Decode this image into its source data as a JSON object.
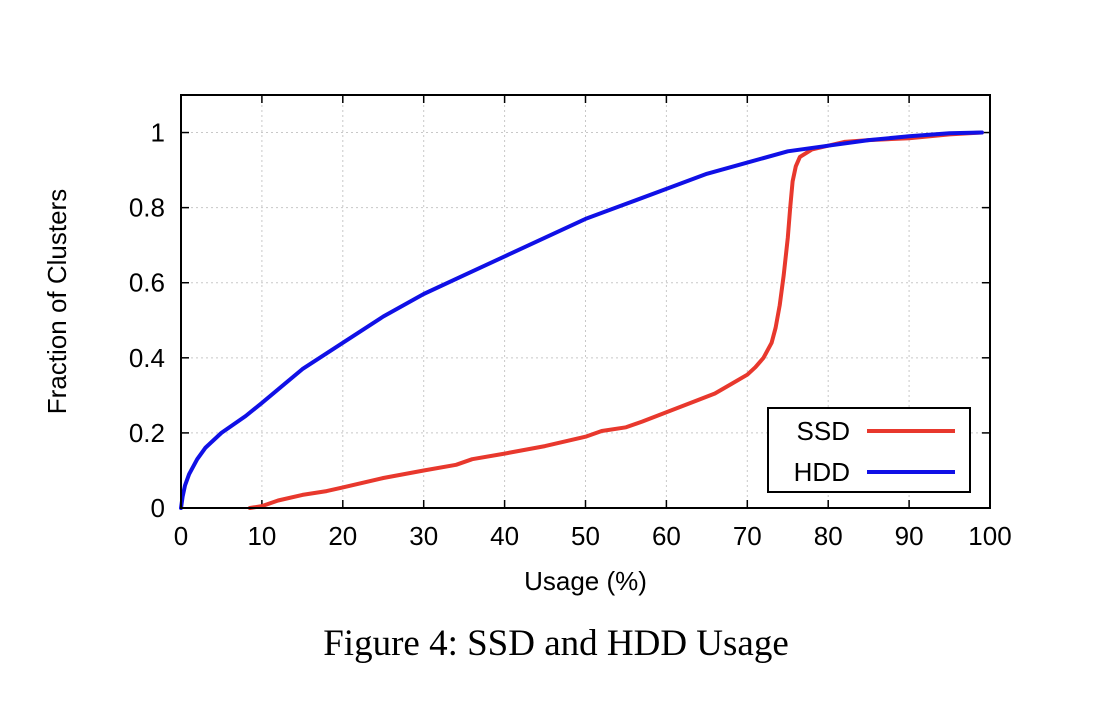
{
  "caption": "Figure 4: SSD and HDD Usage",
  "chart_data": {
    "type": "line",
    "title": "",
    "xlabel": "Usage (%)",
    "ylabel": "Fraction of Clusters",
    "xlim": [
      0,
      100
    ],
    "ylim": [
      0,
      1.1
    ],
    "xticks": [
      "0",
      "10",
      "20",
      "30",
      "40",
      "50",
      "60",
      "70",
      "80",
      "90",
      "100"
    ],
    "yticks": [
      "0",
      "0.2",
      "0.4",
      "0.6",
      "0.8",
      "1"
    ],
    "grid": true,
    "legend_position": "bottom-right",
    "series": [
      {
        "name": "SSD",
        "color": "#e8382d",
        "x": [
          8.5,
          10,
          12,
          15,
          18,
          20,
          25,
          30,
          34,
          36,
          40,
          45,
          50,
          52,
          55,
          57,
          60,
          63,
          66,
          68,
          70,
          71,
          72,
          73,
          73.5,
          74,
          74.5,
          75,
          75.3,
          75.6,
          76,
          76.5,
          78,
          80,
          82,
          85,
          90,
          95,
          99
        ],
        "y": [
          0,
          0.005,
          0.02,
          0.035,
          0.045,
          0.055,
          0.08,
          0.1,
          0.115,
          0.13,
          0.145,
          0.165,
          0.19,
          0.205,
          0.215,
          0.23,
          0.255,
          0.28,
          0.305,
          0.33,
          0.355,
          0.375,
          0.4,
          0.44,
          0.48,
          0.54,
          0.62,
          0.72,
          0.8,
          0.87,
          0.91,
          0.935,
          0.955,
          0.965,
          0.975,
          0.98,
          0.985,
          0.995,
          1.0
        ]
      },
      {
        "name": "HDD",
        "color": "#1010e6",
        "x": [
          0,
          0.2,
          0.5,
          1,
          2,
          3,
          5,
          8,
          10,
          15,
          20,
          25,
          30,
          35,
          40,
          45,
          50,
          55,
          60,
          65,
          70,
          75,
          80,
          85,
          90,
          95,
          99
        ],
        "y": [
          0,
          0.03,
          0.06,
          0.09,
          0.13,
          0.16,
          0.2,
          0.245,
          0.28,
          0.37,
          0.44,
          0.51,
          0.57,
          0.62,
          0.67,
          0.72,
          0.77,
          0.81,
          0.85,
          0.89,
          0.92,
          0.95,
          0.965,
          0.98,
          0.99,
          0.998,
          1.0
        ]
      }
    ]
  }
}
